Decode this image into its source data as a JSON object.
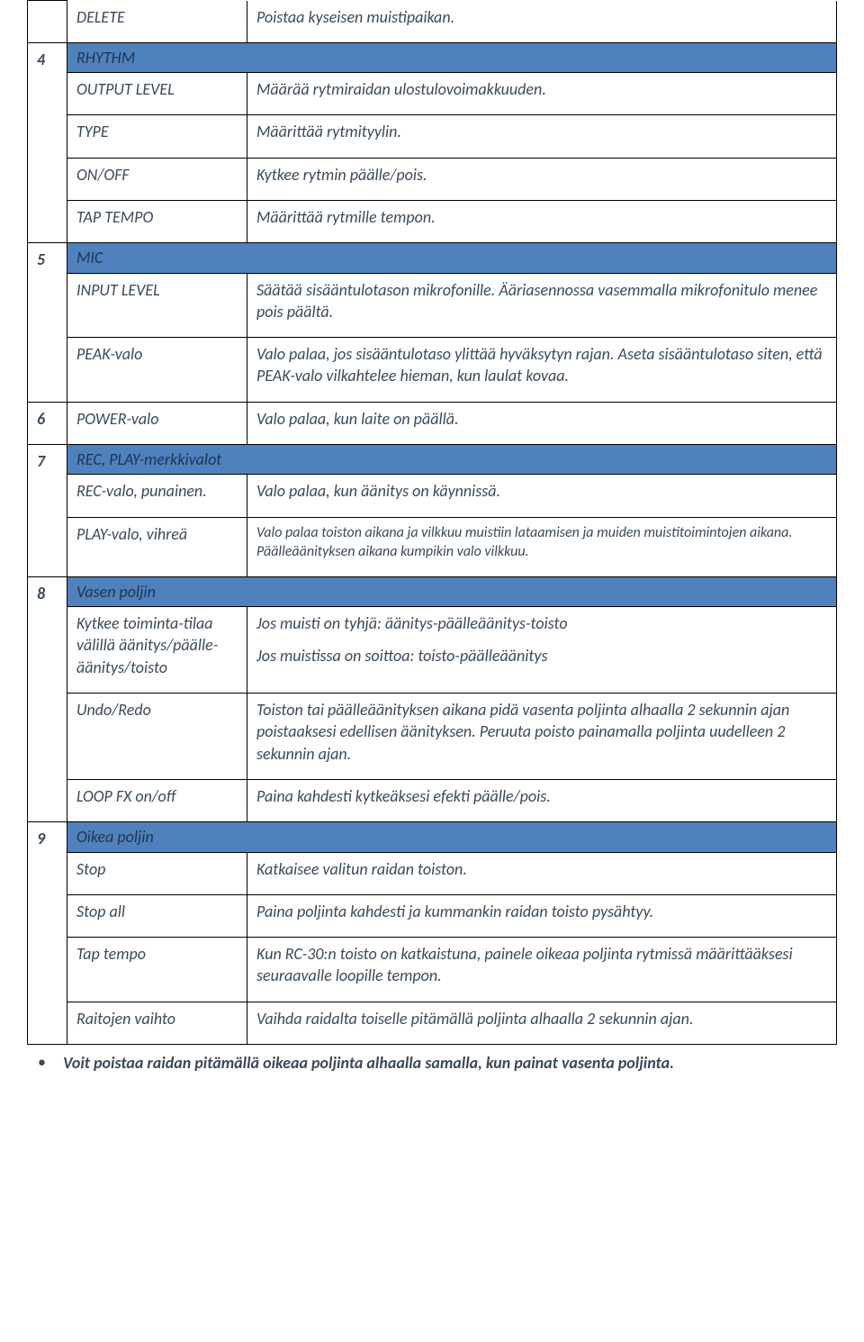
{
  "colors": {
    "header_bg": "#4f81bd",
    "border": "#000000",
    "text": "#3a4a5a"
  },
  "font": {
    "family": "Calibri",
    "base_size_pt": 13,
    "style": "italic"
  },
  "row_delete": {
    "label": "DELETE",
    "desc": "Poistaa kyseisen muistipaikan."
  },
  "s4": {
    "num": "4",
    "title": "RHYTHM",
    "output_level": {
      "label": "OUTPUT LEVEL",
      "desc": "Määrää rytmiraidan ulostulovoimakkuuden."
    },
    "type": {
      "label": "TYPE",
      "desc": "Määrittää rytmityylin."
    },
    "onoff": {
      "label": "ON/OFF",
      "desc": "Kytkee rytmin päälle/pois."
    },
    "taptempo": {
      "label": "TAP TEMPO",
      "desc": "Määrittää rytmille tempon."
    }
  },
  "s5": {
    "num": "5",
    "title": "MIC",
    "input_level": {
      "label": "INPUT LEVEL",
      "desc": "Säätää sisääntulotason mikrofonille. Ääriasennossa vasemmalla mikrofonitulo menee pois päältä."
    },
    "peak": {
      "label": "PEAK-valo",
      "desc": "Valo palaa, jos sisääntulotaso ylittää hyväksytyn rajan. Aseta sisääntulotaso siten, että PEAK-valo vilkahtelee hieman, kun laulat kovaa."
    }
  },
  "s6": {
    "num": "6",
    "label": "POWER-valo",
    "desc": "Valo palaa, kun laite on päällä."
  },
  "s7": {
    "num": "7",
    "title": "REC, PLAY-merkkivalot",
    "rec": {
      "label": "REC-valo, punainen.",
      "desc": "Valo palaa, kun äänitys on käynnissä."
    },
    "play": {
      "label": "PLAY-valo, vihreä",
      "desc": "Valo palaa toiston aikana ja vilkkuu muistiin lataamisen ja muiden muistitoimintojen aikana. Päälleäänityksen aikana kumpikin valo vilkkuu."
    }
  },
  "s8": {
    "num": "8",
    "title": "Vasen poljin",
    "mode": {
      "label": "Kytkee toiminta-tilaa välillä äänitys/päälle-äänitys/toisto",
      "desc1": "Jos muisti on tyhjä: äänitys-päälleäänitys-toisto",
      "desc2": "Jos muistissa on soittoa: toisto-päälleäänitys"
    },
    "undo": {
      "label": "Undo/Redo",
      "desc": "Toiston tai päälleäänityksen aikana pidä vasenta poljinta alhaalla 2 sekunnin ajan poistaaksesi edellisen äänityksen. Peruuta poisto painamalla poljinta uudelleen 2 sekunnin ajan."
    },
    "loopfx": {
      "label": "LOOP FX on/off",
      "desc": "Paina kahdesti kytkeäksesi efekti päälle/pois."
    }
  },
  "s9": {
    "num": "9",
    "title": "Oikea poljin",
    "stop": {
      "label": "Stop",
      "desc": "Katkaisee valitun raidan toiston."
    },
    "stopall": {
      "label": "Stop all",
      "desc": "Paina poljinta kahdesti ja kummankin raidan toisto pysähtyy."
    },
    "taptempo": {
      "label": "Tap tempo",
      "desc": "Kun RC-30:n toisto on katkaistuna, painele oikeaa poljinta rytmissä määrittääksesi seuraavalle loopille tempon."
    },
    "switch": {
      "label": "Raitojen vaihto",
      "desc": "Vaihda raidalta toiselle pitämällä poljinta alhaalla 2 sekunnin ajan."
    }
  },
  "footnote": "Voit poistaa raidan pitämällä oikeaa poljinta alhaalla samalla, kun painat vasenta poljinta."
}
